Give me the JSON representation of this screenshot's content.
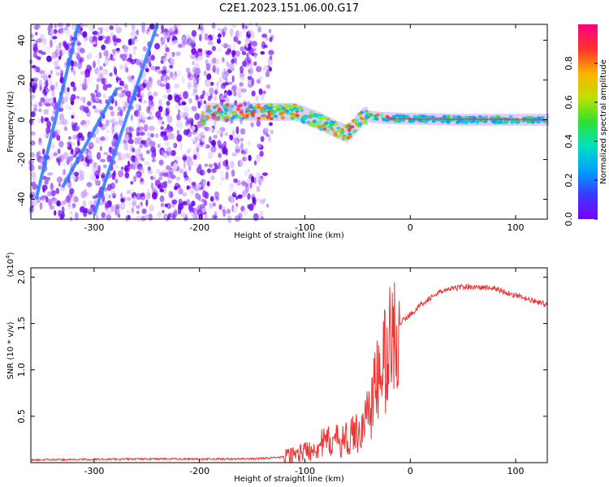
{
  "title": "C2E1.2023.151.06.00.G17",
  "chart_data": [
    {
      "type": "heatmap",
      "xlabel": "Height of straight line (km)",
      "ylabel": "Frequency (Hz)",
      "xlim": [
        -360,
        130
      ],
      "ylim": [
        -50,
        48
      ],
      "xticks": [
        -300,
        -200,
        -100,
        0,
        100
      ],
      "yticks": [
        -40,
        -20,
        0,
        20,
        40
      ],
      "colorbar": {
        "label": "Normalized spectral amplitude",
        "range": [
          0.0,
          1.0
        ],
        "ticks": [
          "0.0",
          "0.2",
          "0.4",
          "0.6",
          "0.8"
        ],
        "colormap": [
          "#7a00ff",
          "#3a3aff",
          "#00a0ff",
          "#00e0c0",
          "#30e030",
          "#c0e000",
          "#ffb000",
          "#ff3030",
          "#ff0080"
        ]
      },
      "trend_ridge": [
        {
          "x": -195,
          "y": 4
        },
        {
          "x": -150,
          "y": 4
        },
        {
          "x": -110,
          "y": 4
        },
        {
          "x": -90,
          "y": 0
        },
        {
          "x": -70,
          "y": -5
        },
        {
          "x": -60,
          "y": -7
        },
        {
          "x": -45,
          "y": 2
        },
        {
          "x": -30,
          "y": 1
        },
        {
          "x": 0,
          "y": 0.5
        },
        {
          "x": 50,
          "y": 0
        },
        {
          "x": 130,
          "y": 0
        }
      ]
    },
    {
      "type": "line",
      "xlabel": "Height of straight line (km)",
      "ylabel": "SNR (10 * v/v)",
      "scale_label": "(x10",
      "scale_exp": "4",
      "xlim": [
        -360,
        130
      ],
      "ylim": [
        0,
        2.1
      ],
      "xticks": [
        -300,
        -200,
        -100,
        0,
        100
      ],
      "yticks": [
        0.5,
        1.0,
        1.5,
        2.0
      ],
      "series": [
        {
          "color": "#ee3333",
          "points": [
            {
              "x": -360,
              "y": 0.03
            },
            {
              "x": -250,
              "y": 0.04
            },
            {
              "x": -150,
              "y": 0.04
            },
            {
              "x": -120,
              "y": 0.06
            },
            {
              "x": -100,
              "y": 0.12
            },
            {
              "x": -80,
              "y": 0.22
            },
            {
              "x": -60,
              "y": 0.25
            },
            {
              "x": -45,
              "y": 0.38
            },
            {
              "x": -30,
              "y": 0.9
            },
            {
              "x": -20,
              "y": 1.25
            },
            {
              "x": -10,
              "y": 1.5
            },
            {
              "x": 0,
              "y": 1.6
            },
            {
              "x": 15,
              "y": 1.75
            },
            {
              "x": 30,
              "y": 1.85
            },
            {
              "x": 50,
              "y": 1.9
            },
            {
              "x": 80,
              "y": 1.88
            },
            {
              "x": 100,
              "y": 1.8
            },
            {
              "x": 130,
              "y": 1.7
            }
          ]
        }
      ]
    }
  ]
}
